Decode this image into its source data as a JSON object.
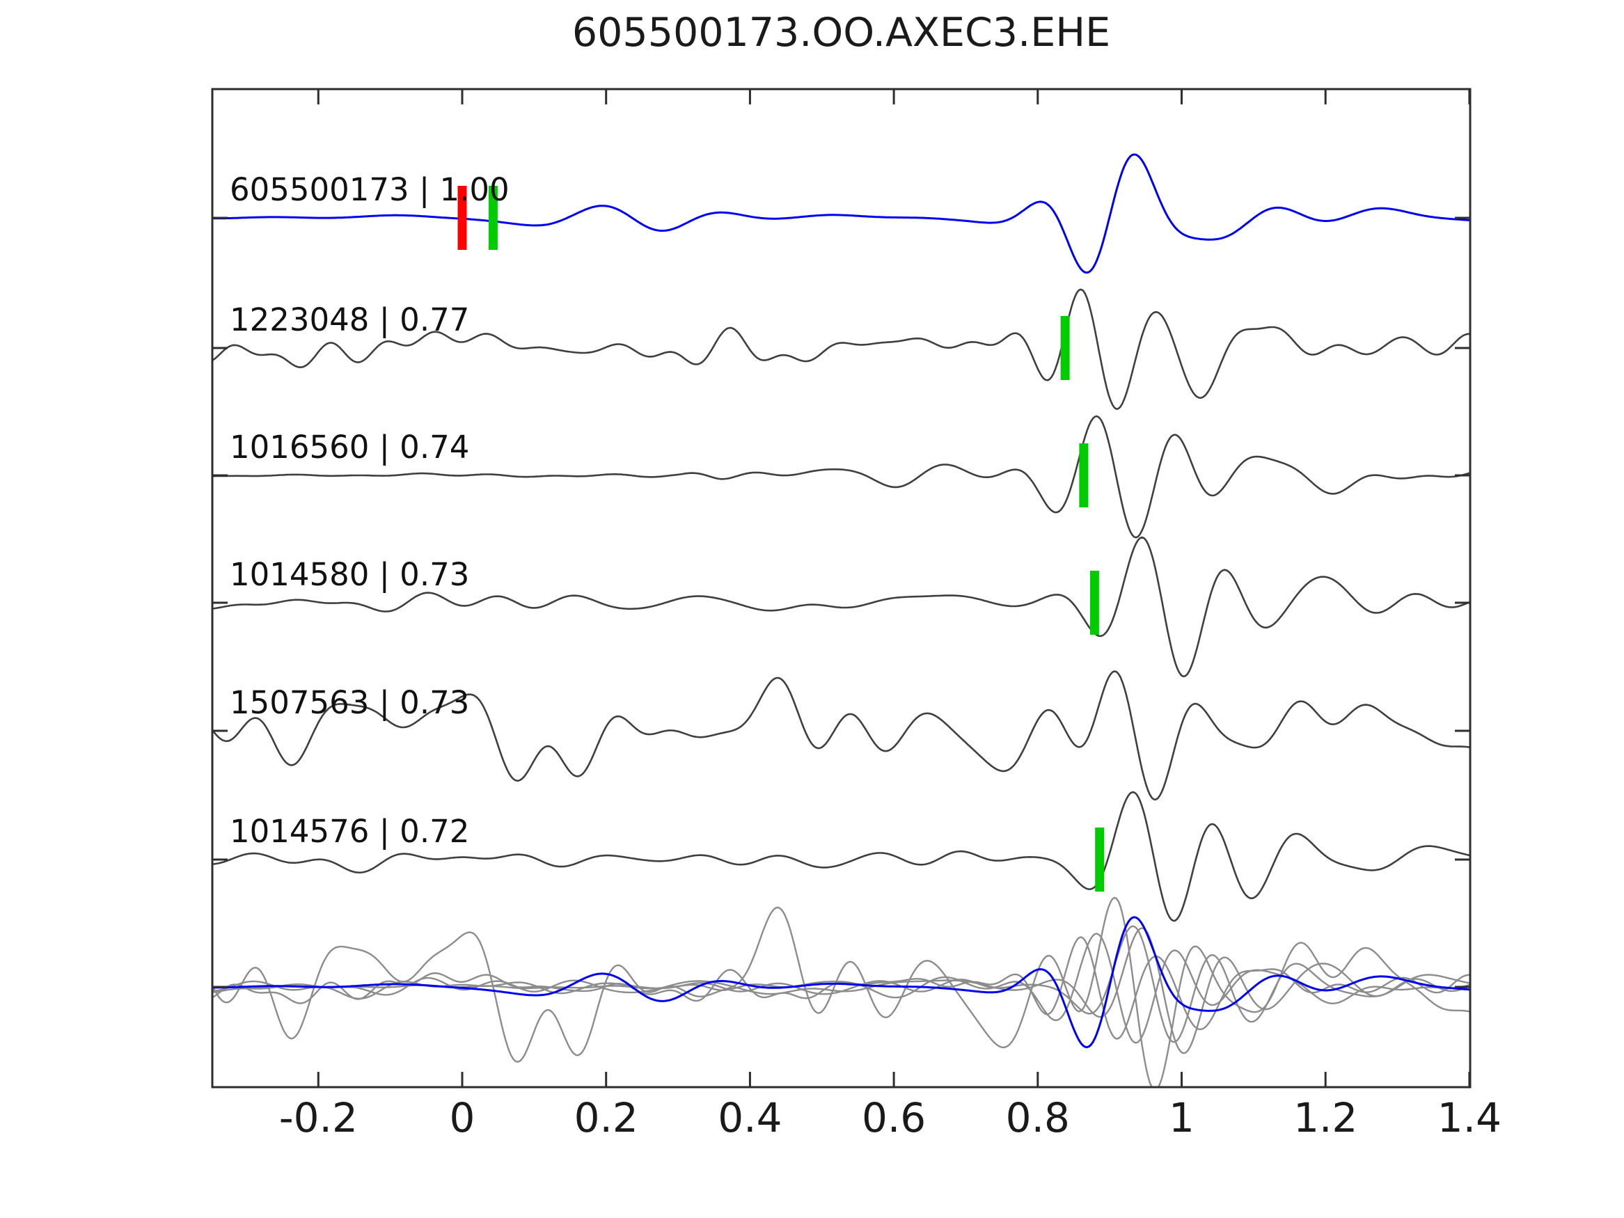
{
  "title": "605500173.OO.AXEC3.EHE",
  "colors": {
    "axis": "#2e2e2e",
    "text": "#1a1a1a",
    "trace_label": "#111111",
    "template_gray": "#3f3f3f",
    "overlay_gray": "#8c8c8c",
    "detection_blue": "#0000f2",
    "pick_red": "#ff0000",
    "pick_green": "#00cc00"
  },
  "x_axis": {
    "tick_labels": [
      "-0.2",
      "0",
      "0.2",
      "0.4",
      "0.6",
      "0.8",
      "1",
      "1.2",
      "1.4"
    ],
    "tick_values": [
      -0.2,
      0,
      0.2,
      0.4,
      0.6,
      0.8,
      1.0,
      1.2,
      1.4
    ]
  },
  "chart_data": {
    "type": "line",
    "title": "605500173.OO.AXEC3.EHE",
    "xlabel": "",
    "ylabel": "",
    "grid": false,
    "legend": false,
    "x_range": [
      -0.347,
      1.401
    ],
    "xticks": [
      -0.2,
      0,
      0.2,
      0.4,
      0.6,
      0.8,
      1,
      1.2,
      1.4
    ],
    "description": "Stacked seismic waveform traces: detection trace (blue) with red/green picks, five template traces (gray) with green picks, and an overlay of all traces at the bottom.",
    "rows": [
      {
        "id": "605500173",
        "label": "605500173 | 1.00",
        "correlation": 1.0,
        "role": "detection",
        "color_key": "detection_blue",
        "picks": [
          {
            "time": 0.0,
            "color_key": "pick_red"
          },
          {
            "time": 0.043,
            "color_key": "pick_green"
          }
        ],
        "overlay_scale": 1.1,
        "synth": {
          "seed": 101,
          "noise_amp": 7,
          "fmin": 1.5,
          "fmax": 7,
          "env": [
            [
              -0.35,
              0.6
            ],
            [
              0.0,
              0.7
            ],
            [
              0.12,
              1.9
            ],
            [
              0.3,
              2.1
            ],
            [
              0.45,
              1.0
            ],
            [
              0.7,
              0.8
            ],
            [
              0.9,
              1.2
            ],
            [
              1.1,
              2.0
            ],
            [
              1.4,
              1.3
            ]
          ],
          "wavelets": [
            [
              0.9,
              85,
              7,
              0.09
            ],
            [
              1.09,
              26,
              5.5,
              0.16
            ],
            [
              0.24,
              -20,
              4.5,
              0.1
            ]
          ]
        }
      },
      {
        "id": "1223048",
        "label": "1223048 | 0.77",
        "correlation": 0.77,
        "role": "template",
        "color_key": "template_gray",
        "picks": [
          {
            "time": 0.838,
            "color_key": "pick_green"
          }
        ],
        "overlay_scale": 0.85,
        "synth": {
          "seed": 202,
          "noise_amp": 19,
          "fmin": 1.5,
          "fmax": 15,
          "env": [
            [
              -0.35,
              1.25
            ],
            [
              0.15,
              0.95
            ],
            [
              0.45,
              1.1
            ],
            [
              0.75,
              1.0
            ],
            [
              1.0,
              0.85
            ],
            [
              1.4,
              0.8
            ]
          ],
          "wavelets": [
            [
              0.885,
              -95,
              9,
              0.1
            ],
            [
              1.07,
              32,
              6,
              0.16
            ]
          ]
        }
      },
      {
        "id": "1016560",
        "label": "1016560 | 0.74",
        "correlation": 0.74,
        "role": "template",
        "color_key": "template_gray",
        "picks": [
          {
            "time": 0.864,
            "color_key": "pick_green"
          }
        ],
        "overlay_scale": 0.9,
        "synth": {
          "seed": 303,
          "noise_amp": 12,
          "fmin": 1.5,
          "fmax": 12,
          "env": [
            [
              -0.35,
              0.16
            ],
            [
              0.3,
              0.18
            ],
            [
              0.36,
              0.9
            ],
            [
              0.6,
              1.0
            ],
            [
              1.4,
              0.95
            ]
          ],
          "wavelets": [
            [
              0.91,
              -100,
              8,
              0.1
            ],
            [
              1.08,
              28,
              6,
              0.15
            ]
          ]
        }
      },
      {
        "id": "1014580",
        "label": "1014580 | 0.73",
        "correlation": 0.73,
        "role": "template",
        "color_key": "template_gray",
        "picks": [
          {
            "time": 0.879,
            "color_key": "pick_green"
          }
        ],
        "overlay_scale": 0.9,
        "synth": {
          "seed": 404,
          "noise_amp": 11,
          "fmin": 1.5,
          "fmax": 12,
          "env": [
            [
              -0.35,
              0.95
            ],
            [
              0.4,
              0.85
            ],
            [
              0.75,
              1.0
            ],
            [
              1.1,
              1.35
            ],
            [
              1.4,
              1.05
            ]
          ],
          "wavelets": [
            [
              0.975,
              -105,
              8,
              0.1
            ],
            [
              1.15,
              30,
              6,
              0.14
            ]
          ]
        }
      },
      {
        "id": "1507563",
        "label": "1507563 | 0.73",
        "correlation": 0.73,
        "role": "template",
        "color_key": "template_gray",
        "picks": [],
        "overlay_scale": 1.5,
        "synth": {
          "seed": 505,
          "noise_amp": 40,
          "fmin": 1.5,
          "fmax": 13,
          "env": [
            [
              -0.35,
              1.1
            ],
            [
              -0.05,
              1.35
            ],
            [
              0.3,
              1.0
            ],
            [
              0.7,
              1.25
            ],
            [
              1.05,
              1.05
            ],
            [
              1.4,
              0.85
            ]
          ],
          "wavelets": [
            [
              0.93,
              -70,
              7.5,
              0.1
            ]
          ]
        }
      },
      {
        "id": "1014576",
        "label": "1014576 | 0.72",
        "correlation": 0.72,
        "role": "template",
        "color_key": "template_gray",
        "picks": [
          {
            "time": 0.886,
            "color_key": "pick_green"
          }
        ],
        "overlay_scale": 0.9,
        "synth": {
          "seed": 606,
          "noise_amp": 12,
          "fmin": 1.5,
          "fmax": 12,
          "env": [
            [
              -0.35,
              1.0
            ],
            [
              0.5,
              0.9
            ],
            [
              0.85,
              1.0
            ],
            [
              1.15,
              1.35
            ],
            [
              1.4,
              1.0
            ]
          ],
          "wavelets": [
            [
              0.96,
              -105,
              8,
              0.1
            ],
            [
              1.13,
              28,
              6,
              0.14
            ]
          ]
        }
      }
    ],
    "overlay": {
      "gray_rows": [
        1,
        2,
        3,
        4,
        5
      ],
      "blue_row": 0
    }
  }
}
